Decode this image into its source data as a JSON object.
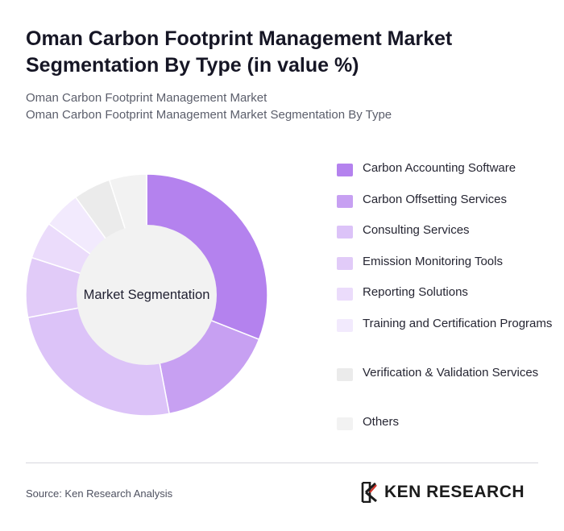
{
  "header": {
    "title": "Oman Carbon Footprint Management Market Segmentation By Type (in value %)",
    "subtitle_line1": "Oman Carbon Footprint Management Market",
    "subtitle_line2": "Oman Carbon Footprint Management Market Segmentation By Type"
  },
  "chart_data": {
    "type": "pie",
    "style": "donut",
    "center_label": "Market Segmentation",
    "legend_position": "right",
    "categories": [
      "Carbon Accounting Software",
      "Carbon Offsetting Services",
      "Consulting Services",
      "Emission Monitoring Tools",
      "Reporting Solutions",
      "Training and Certification Programs",
      "Verification & Validation Services",
      "Others"
    ],
    "values": [
      31,
      16,
      25,
      8,
      5,
      5,
      5,
      5
    ],
    "colors": [
      "#b482ee",
      "#c7a0f2",
      "#dcc3f8",
      "#e1cbf8",
      "#ebdcfb",
      "#f2eafd",
      "#ebebeb",
      "#f2f2f2"
    ]
  },
  "footer": {
    "source": "Source: Ken Research Analysis",
    "logo_text": "KEN RESEARCH"
  }
}
